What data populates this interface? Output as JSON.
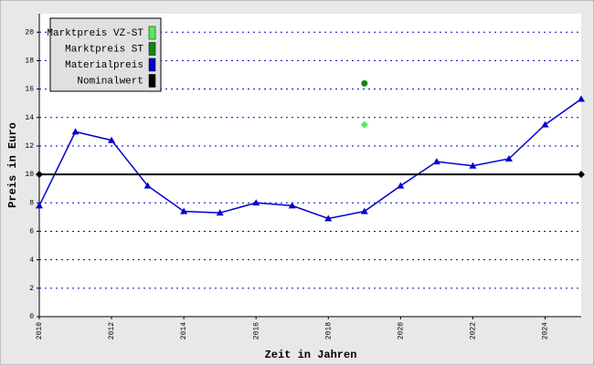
{
  "chart_data": {
    "type": "line",
    "x_label": "Zeit in Jahren",
    "y_label": "Preis in Euro",
    "xlim": [
      2010,
      2025
    ],
    "xticks": [
      2010,
      2012,
      2014,
      2016,
      2018,
      2020,
      2022,
      2024
    ],
    "ylim": [
      0,
      21.3
    ],
    "yticks": [
      0,
      2,
      4,
      6,
      8,
      10,
      12,
      14,
      16,
      18,
      20
    ],
    "grid": true,
    "legend": "upper left",
    "series": [
      {
        "name": "Marktpreis VZ-ST",
        "color": "#55ee55",
        "marker": "diamond",
        "line": false,
        "x": [
          2019
        ],
        "values": [
          13.5
        ]
      },
      {
        "name": "Marktpreis ST",
        "color": "#118811",
        "marker": "circle",
        "line": false,
        "x": [
          2019
        ],
        "values": [
          16.4
        ]
      },
      {
        "name": "Materialpreis",
        "color": "#0000cc",
        "marker": "triangle",
        "line": true,
        "x": [
          2010,
          2011,
          2012,
          2013,
          2014,
          2015,
          2016,
          2017,
          2018,
          2019,
          2020,
          2021,
          2022,
          2023,
          2024,
          2025
        ],
        "values": [
          7.8,
          13.0,
          12.4,
          9.2,
          7.4,
          7.3,
          8.0,
          7.8,
          6.9,
          7.4,
          9.2,
          10.9,
          10.6,
          11.1,
          13.5,
          15.3
        ]
      },
      {
        "name": "Nominalwert",
        "color": "#000000",
        "marker": "diamond",
        "line": true,
        "x": [
          2010,
          2025
        ],
        "values": [
          10,
          10
        ]
      }
    ]
  }
}
